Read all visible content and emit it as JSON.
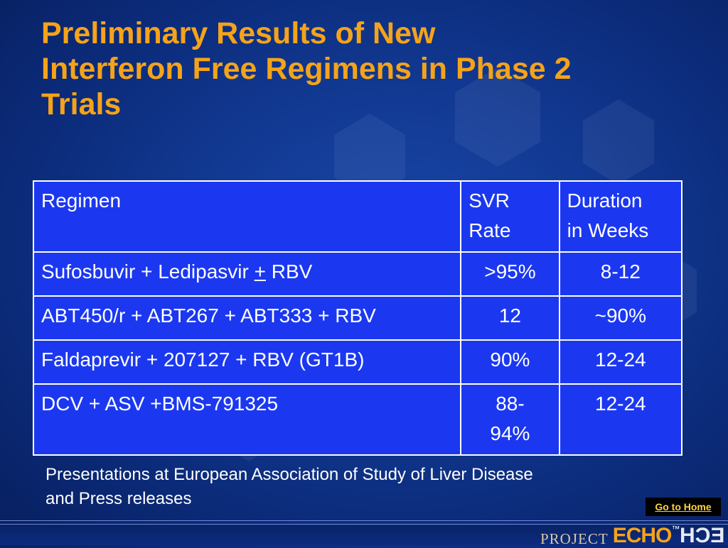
{
  "slide": {
    "title_lines": [
      "Preliminary Results of New",
      "Interferon Free Regimens in Phase 2",
      "Trials"
    ]
  },
  "table": {
    "header": {
      "regimen": "Regimen",
      "svr_line1": "SVR",
      "svr_line2": "Rate",
      "duration_line1": "Duration",
      "duration_line2": "in Weeks"
    },
    "rows": [
      {
        "regimen_pre": "Sufosbuvir + Ledipasvir ",
        "regimen_pm": "+",
        "regimen_post": " RBV",
        "svr": ">95%",
        "duration": "8-12"
      },
      {
        "regimen": "ABT450/r + ABT267 + ABT333 + RBV",
        "svr": "12",
        "duration": "~90%"
      },
      {
        "regimen": "Faldaprevir + 207127 + RBV (GT1B)",
        "svr": "90%",
        "duration": "12-24"
      },
      {
        "regimen": "DCV + ASV +BMS-791325",
        "svr_line1": "88-",
        "svr_line2": "94%",
        "duration": "12-24"
      }
    ]
  },
  "source": {
    "line1": "Presentations at European Association of Study of Liver Disease",
    "line2": "and Press releases"
  },
  "nav": {
    "home_label": "Go to Home"
  },
  "footer": {
    "logo_project": "PROJECT",
    "logo_echo": "ECHO",
    "logo_tm": "™",
    "logo_mirror": "ECH"
  },
  "colors": {
    "title": "#f5a31a",
    "table_fill": "#1b38f0",
    "background": "#123a94",
    "home_button_text": "#ffd23c"
  }
}
